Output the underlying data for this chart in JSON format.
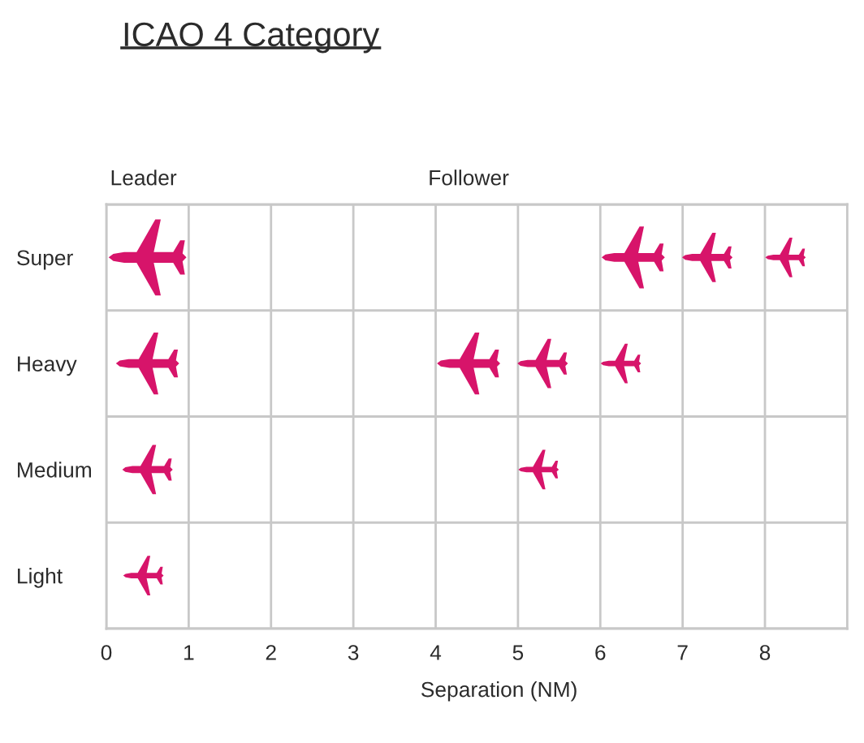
{
  "chart_data": {
    "type": "bubble",
    "orientation": "horizontal",
    "title": "ICAO 4 Category",
    "xlabel": "Separation (NM)",
    "categories": [
      "Super",
      "Heavy",
      "Medium",
      "Light"
    ],
    "xlim": [
      0,
      9
    ],
    "xticks": [
      0,
      1,
      2,
      3,
      4,
      5,
      6,
      7,
      8
    ],
    "grid": true,
    "annotations": [
      "Leader",
      "Follower"
    ],
    "series": [
      {
        "color": "#d7146a",
        "values": [
          0.5,
          0.5,
          0.5,
          0.45
        ],
        "sizes": [
          1,
          0.66,
          0.42,
          0.27
        ]
      },
      {
        "color": "#d7146a",
        "values": [
          6.4,
          4.4,
          5.25,
          null
        ],
        "sizes": [
          0.66,
          0.66,
          0.27,
          null
        ]
      },
      {
        "color": "#d7146a",
        "values": [
          7.3,
          5.3,
          null,
          null
        ],
        "sizes": [
          0.42,
          0.42,
          null,
          null
        ]
      },
      {
        "color": "#d7146a",
        "values": [
          8.25,
          6.25,
          null,
          null
        ],
        "sizes": [
          0.27,
          0.27,
          null,
          null
        ]
      }
    ]
  }
}
